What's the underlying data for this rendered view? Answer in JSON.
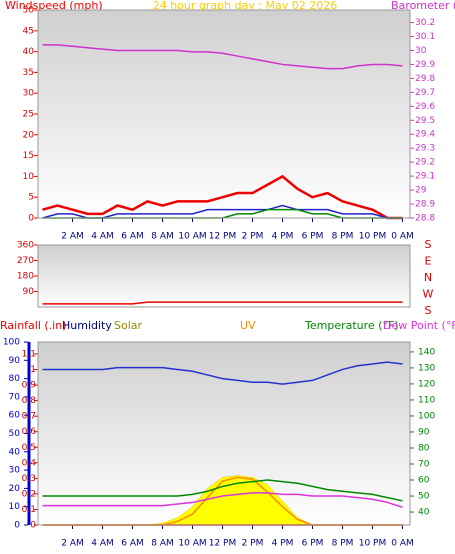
{
  "chart_data": [
    {
      "type": "line",
      "title": "24 hour graph day : May 02 2026",
      "x": [
        0,
        1,
        2,
        3,
        4,
        5,
        6,
        7,
        8,
        9,
        10,
        11,
        12,
        13,
        14,
        15,
        16,
        17,
        18,
        19,
        20,
        21,
        22,
        23,
        24
      ],
      "xlim": [
        -0.3,
        24.5
      ],
      "xticks": [
        {
          "value": 2,
          "label": "2 AM"
        },
        {
          "value": 4,
          "label": "4 AM"
        },
        {
          "value": 6,
          "label": "6 AM"
        },
        {
          "value": 8,
          "label": "8 AM"
        },
        {
          "value": 10,
          "label": "10 AM"
        },
        {
          "value": 12,
          "label": "12 PM"
        },
        {
          "value": 14,
          "label": "2 PM"
        },
        {
          "value": 16,
          "label": "4 PM"
        },
        {
          "value": 18,
          "label": "6 PM"
        },
        {
          "value": 20,
          "label": "8 PM"
        },
        {
          "value": 22,
          "label": "10 PM"
        },
        {
          "value": 24,
          "label": "0 AM"
        }
      ],
      "ylim": [
        0,
        50
      ],
      "yticks": [
        0,
        5,
        10,
        15,
        20,
        25,
        30,
        35,
        40,
        45,
        50
      ],
      "y2lim": [
        28.8,
        30.29
      ],
      "y2ticks": [
        28.8,
        28.9,
        29,
        29.1,
        29.2,
        29.3,
        29.4,
        29.5,
        29.6,
        29.7,
        29.8,
        29.9,
        30,
        30.1,
        30.2
      ],
      "series": [
        {
          "name": "Windspeed (mph)",
          "color": "#ee0000",
          "values": [
            2,
            3,
            2,
            1,
            1,
            3,
            2,
            4,
            3,
            4,
            4,
            4,
            5,
            6,
            6,
            8,
            10,
            7,
            5,
            6,
            4,
            3,
            2,
            0,
            0
          ]
        },
        {
          "color": "#2222cc",
          "values": [
            0,
            1,
            1,
            0,
            0,
            1,
            1,
            1,
            1,
            1,
            1,
            2,
            2,
            2,
            2,
            2,
            3,
            2,
            2,
            2,
            1,
            1,
            1,
            0,
            0
          ]
        },
        {
          "color": "#008800",
          "values": [
            0,
            0,
            0,
            0,
            0,
            0,
            0,
            0,
            0,
            0,
            0,
            0,
            0,
            1,
            1,
            2,
            2,
            2,
            1,
            1,
            0,
            0,
            0,
            0,
            0
          ]
        },
        {
          "name": "Barometer (.in)",
          "color": "#cc33cc",
          "axis": "y2",
          "values": [
            30.04,
            30.04,
            30.03,
            30.02,
            30.01,
            30.0,
            30.0,
            30.0,
            30.0,
            30.0,
            29.99,
            29.99,
            29.98,
            29.96,
            29.94,
            29.92,
            29.9,
            29.89,
            29.88,
            29.87,
            29.87,
            29.89,
            29.9,
            29.9,
            29.89
          ]
        }
      ]
    },
    {
      "type": "line",
      "x": [
        0,
        1,
        2,
        3,
        4,
        5,
        6,
        7,
        8,
        9,
        10,
        11,
        12,
        13,
        14,
        15,
        16,
        17,
        18,
        19,
        20,
        21,
        22,
        23,
        24
      ],
      "xlim": [
        -0.3,
        24.5
      ],
      "ylim": [
        0,
        360
      ],
      "yticks": [
        90,
        180,
        270,
        360
      ],
      "compass_labels": [
        "S",
        "E",
        "N",
        "W",
        "S"
      ],
      "series": [
        {
          "color": "#ee0000",
          "values": [
            18,
            18,
            18,
            18,
            18,
            18,
            18,
            28,
            28,
            28,
            28,
            28,
            28,
            28,
            28,
            28,
            28,
            28,
            28,
            28,
            28,
            28,
            28,
            28,
            28
          ]
        }
      ]
    },
    {
      "type": "line",
      "x": [
        0,
        1,
        2,
        3,
        4,
        5,
        6,
        7,
        8,
        9,
        10,
        11,
        12,
        13,
        14,
        15,
        16,
        17,
        18,
        19,
        20,
        21,
        22,
        23,
        24
      ],
      "xlim": [
        -0.3,
        24.5
      ],
      "xticks": [
        {
          "value": 2,
          "label": "2 AM"
        },
        {
          "value": 4,
          "label": "4 AM"
        },
        {
          "value": 6,
          "label": "6 AM"
        },
        {
          "value": 8,
          "label": "8 AM"
        },
        {
          "value": 10,
          "label": "10 AM"
        },
        {
          "value": 12,
          "label": "12 PM"
        },
        {
          "value": 14,
          "label": "2 PM"
        },
        {
          "value": 16,
          "label": "4 PM"
        },
        {
          "value": 18,
          "label": "6 PM"
        },
        {
          "value": 20,
          "label": "8 PM"
        },
        {
          "value": 22,
          "label": "10 PM"
        },
        {
          "value": 24,
          "label": "0 AM"
        }
      ],
      "ylim": [
        0,
        100
      ],
      "yticks": [
        0,
        10,
        20,
        30,
        40,
        50,
        60,
        70,
        80,
        90,
        100
      ],
      "y2lim": [
        31.9,
        146.2
      ],
      "y2ticks": [
        40,
        50,
        60,
        70,
        80,
        90,
        100,
        110,
        120,
        130,
        140
      ],
      "y3lim": [
        0,
        1.177
      ],
      "y3ticks": [
        0,
        0.1,
        0.2,
        0.3,
        0.4,
        0.5,
        0.6,
        0.7,
        0.8,
        0.9,
        1,
        1.1
      ],
      "series": [
        {
          "name": "Solar",
          "color": "#ffff00",
          "fill": true,
          "values": [
            0,
            0,
            0,
            0,
            0,
            0,
            0,
            0,
            1,
            4,
            10,
            20,
            26,
            27,
            26,
            22,
            13,
            4,
            0,
            0,
            0,
            0,
            0,
            0,
            0
          ]
        },
        {
          "name": "Rainfall (.in)",
          "color": "#ee0000",
          "axis": "y3",
          "values": [
            0,
            0,
            0,
            0,
            0,
            0,
            0,
            0,
            0,
            0,
            0,
            0,
            0,
            0,
            0,
            0,
            0,
            0,
            0,
            0,
            0,
            0,
            0,
            0,
            0
          ]
        },
        {
          "name": "Humidity",
          "color": "#2233cc",
          "values": [
            85,
            85,
            85,
            85,
            85,
            86,
            86,
            86,
            86,
            85,
            84,
            82,
            80,
            79,
            78,
            78,
            77,
            78,
            79,
            82,
            85,
            87,
            88,
            89,
            88
          ]
        },
        {
          "name": "UV",
          "color": "#ff8800",
          "values": [
            0,
            0,
            0,
            0,
            0,
            0,
            0,
            0,
            0,
            2,
            6,
            15,
            24,
            26,
            25,
            18,
            10,
            3,
            0,
            0,
            0,
            0,
            0,
            0,
            0
          ]
        },
        {
          "name": "Temperature (°F)",
          "color": "#008800",
          "axis": "y2",
          "values": [
            50,
            50,
            50,
            50,
            50,
            50,
            50,
            50,
            50,
            50,
            51,
            53,
            56,
            58,
            59,
            60,
            59,
            58,
            56,
            54,
            53,
            52,
            51,
            49,
            47
          ]
        },
        {
          "name": "Dew Point (°F)",
          "color": "#dd33dd",
          "axis": "y2",
          "values": [
            44,
            44,
            44,
            44,
            44,
            44,
            44,
            44,
            44,
            45,
            46,
            48,
            50,
            51,
            52,
            52,
            51,
            51,
            50,
            50,
            50,
            49,
            48,
            46,
            43
          ]
        }
      ]
    }
  ]
}
